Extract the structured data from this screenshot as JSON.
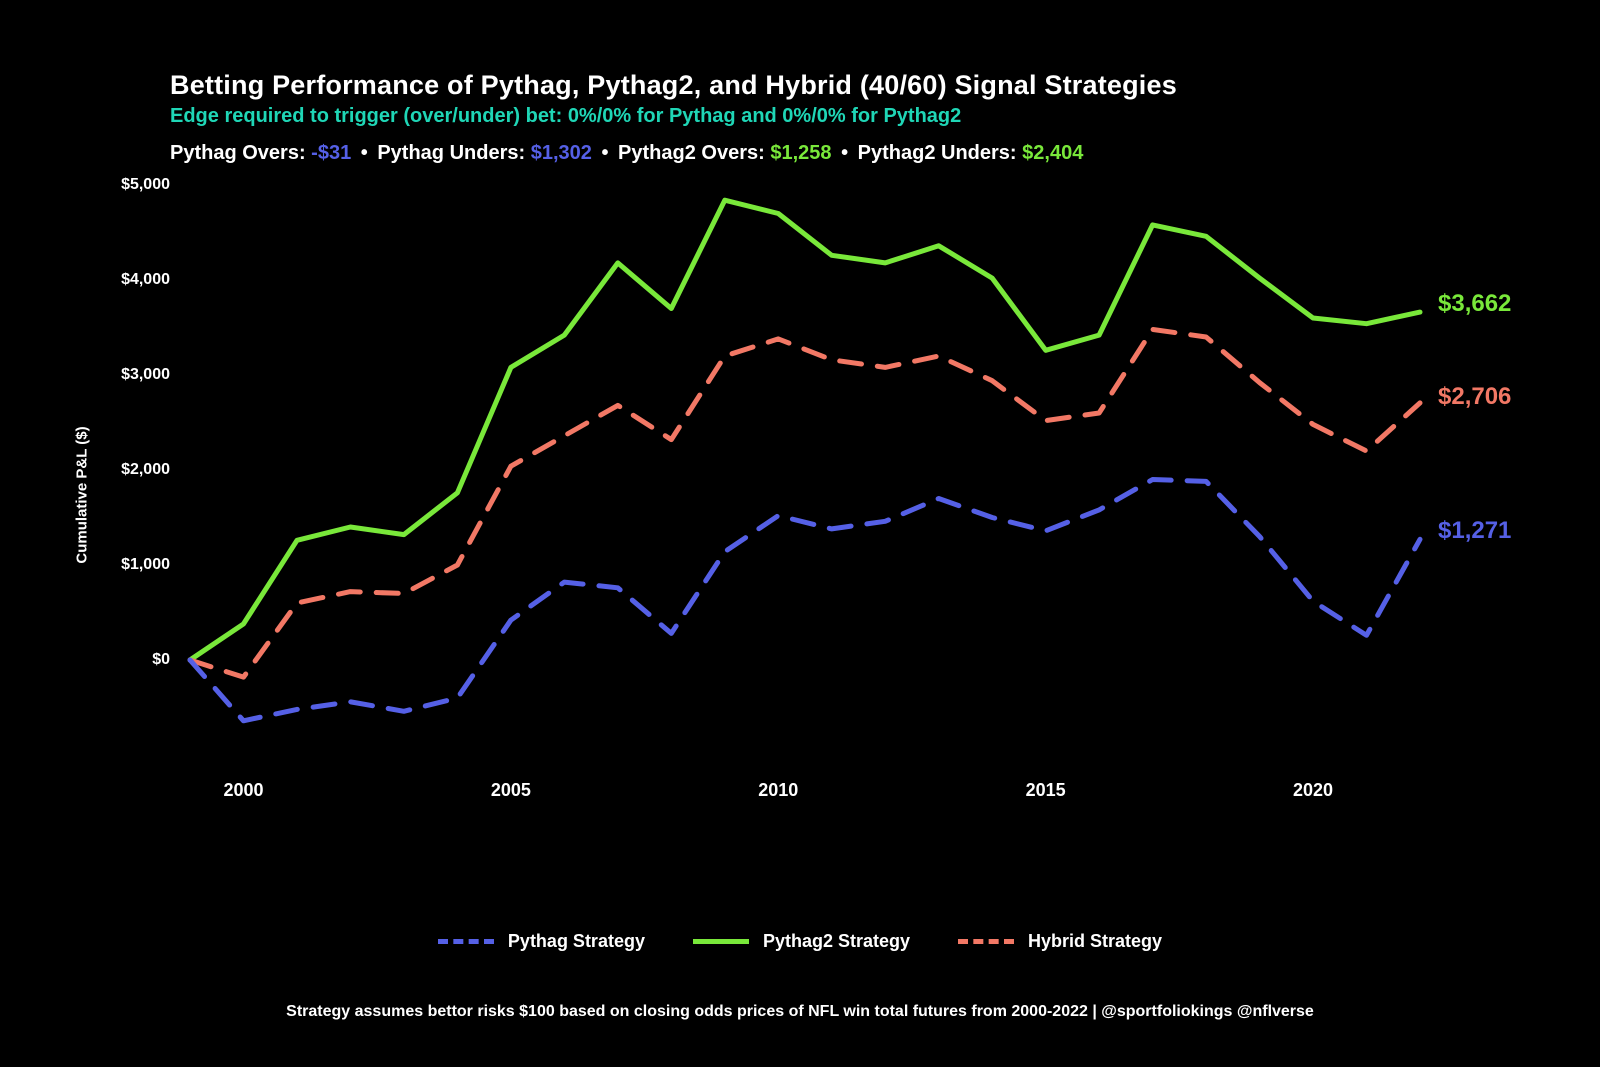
{
  "title": "Betting Performance of Pythag, Pythag2, and Hybrid (40/60) Signal Strategies",
  "subtitle": "Edge required to trigger (over/under) bet: 0%/0% for Pythag and 0%/0% for Pythag2",
  "subtitle_color": "#1fd6b6",
  "stats": {
    "pythag_overs_label": "Pythag Overs:",
    "pythag_overs_value": "-$31",
    "pythag_overs_color": "#5560e6",
    "pythag_unders_label": "Pythag Unders:",
    "pythag_unders_value": "$1,302",
    "pythag_unders_color": "#5560e6",
    "pythag2_overs_label": "Pythag2 Overs:",
    "pythag2_overs_value": "$1,258",
    "pythag2_overs_color": "#79e83a",
    "pythag2_unders_label": "Pythag2 Unders:",
    "pythag2_unders_value": "$2,404",
    "pythag2_unders_color": "#79e83a",
    "sep": "•"
  },
  "chart": {
    "type": "line",
    "background_color": "#000000",
    "x": {
      "min": 1999,
      "max": 2022,
      "ticks": [
        2000,
        2005,
        2010,
        2015,
        2020
      ]
    },
    "y": {
      "min": -1000,
      "max": 5000,
      "ticks": [
        0,
        1000,
        2000,
        3000,
        4000,
        5000
      ],
      "tick_labels": [
        "$0",
        "$1,000",
        "$2,000",
        "$3,000",
        "$4,000",
        "$5,000"
      ],
      "axis_label": "Cumulative P&L ($)"
    },
    "line_width": 5,
    "dash_pattern": "22 16",
    "series": [
      {
        "name": "Pythag2 Strategy",
        "color": "#79e83a",
        "style": "solid",
        "end_label": "$3,662",
        "end_label_offset_y": -8,
        "values": [
          [
            1999,
            0
          ],
          [
            2000,
            380
          ],
          [
            2001,
            1260
          ],
          [
            2002,
            1400
          ],
          [
            2003,
            1320
          ],
          [
            2004,
            1760
          ],
          [
            2005,
            3080
          ],
          [
            2006,
            3420
          ],
          [
            2007,
            4180
          ],
          [
            2008,
            3700
          ],
          [
            2009,
            4840
          ],
          [
            2010,
            4700
          ],
          [
            2011,
            4260
          ],
          [
            2012,
            4180
          ],
          [
            2013,
            4360
          ],
          [
            2014,
            4020
          ],
          [
            2015,
            3260
          ],
          [
            2016,
            3420
          ],
          [
            2017,
            4580
          ],
          [
            2018,
            4460
          ],
          [
            2019,
            4020
          ],
          [
            2020,
            3600
          ],
          [
            2021,
            3540
          ],
          [
            2022,
            3662
          ]
        ]
      },
      {
        "name": "Hybrid Strategy",
        "color": "#f27865",
        "style": "dashed",
        "end_label": "$2,706",
        "end_label_offset_y": -6,
        "values": [
          [
            1999,
            0
          ],
          [
            2000,
            -180
          ],
          [
            2001,
            600
          ],
          [
            2002,
            720
          ],
          [
            2003,
            700
          ],
          [
            2004,
            1000
          ],
          [
            2005,
            2040
          ],
          [
            2006,
            2360
          ],
          [
            2007,
            2680
          ],
          [
            2008,
            2320
          ],
          [
            2009,
            3200
          ],
          [
            2010,
            3380
          ],
          [
            2011,
            3160
          ],
          [
            2012,
            3080
          ],
          [
            2013,
            3200
          ],
          [
            2014,
            2940
          ],
          [
            2015,
            2520
          ],
          [
            2016,
            2600
          ],
          [
            2017,
            3480
          ],
          [
            2018,
            3400
          ],
          [
            2019,
            2920
          ],
          [
            2020,
            2480
          ],
          [
            2021,
            2200
          ],
          [
            2022,
            2706
          ]
        ]
      },
      {
        "name": "Pythag Strategy",
        "color": "#5560e6",
        "style": "dashed",
        "end_label": "$1,271",
        "end_label_offset_y": -8,
        "values": [
          [
            1999,
            0
          ],
          [
            2000,
            -640
          ],
          [
            2001,
            -520
          ],
          [
            2002,
            -440
          ],
          [
            2003,
            -540
          ],
          [
            2004,
            -400
          ],
          [
            2005,
            420
          ],
          [
            2006,
            820
          ],
          [
            2007,
            760
          ],
          [
            2008,
            280
          ],
          [
            2009,
            1140
          ],
          [
            2010,
            1520
          ],
          [
            2011,
            1380
          ],
          [
            2012,
            1460
          ],
          [
            2013,
            1700
          ],
          [
            2014,
            1500
          ],
          [
            2015,
            1360
          ],
          [
            2016,
            1580
          ],
          [
            2017,
            1900
          ],
          [
            2018,
            1880
          ],
          [
            2019,
            1300
          ],
          [
            2020,
            620
          ],
          [
            2021,
            260
          ],
          [
            2022,
            1271
          ]
        ]
      }
    ],
    "legend": [
      {
        "label": "Pythag Strategy",
        "color": "#5560e6",
        "style": "dashed"
      },
      {
        "label": "Pythag2 Strategy",
        "color": "#79e83a",
        "style": "solid"
      },
      {
        "label": "Hybrid Strategy",
        "color": "#f27865",
        "style": "dashed"
      }
    ]
  },
  "caption": "Strategy assumes bettor risks $100 based on closing odds prices of NFL win total futures from 2000-2022 | @sportfoliokings @nflverse"
}
